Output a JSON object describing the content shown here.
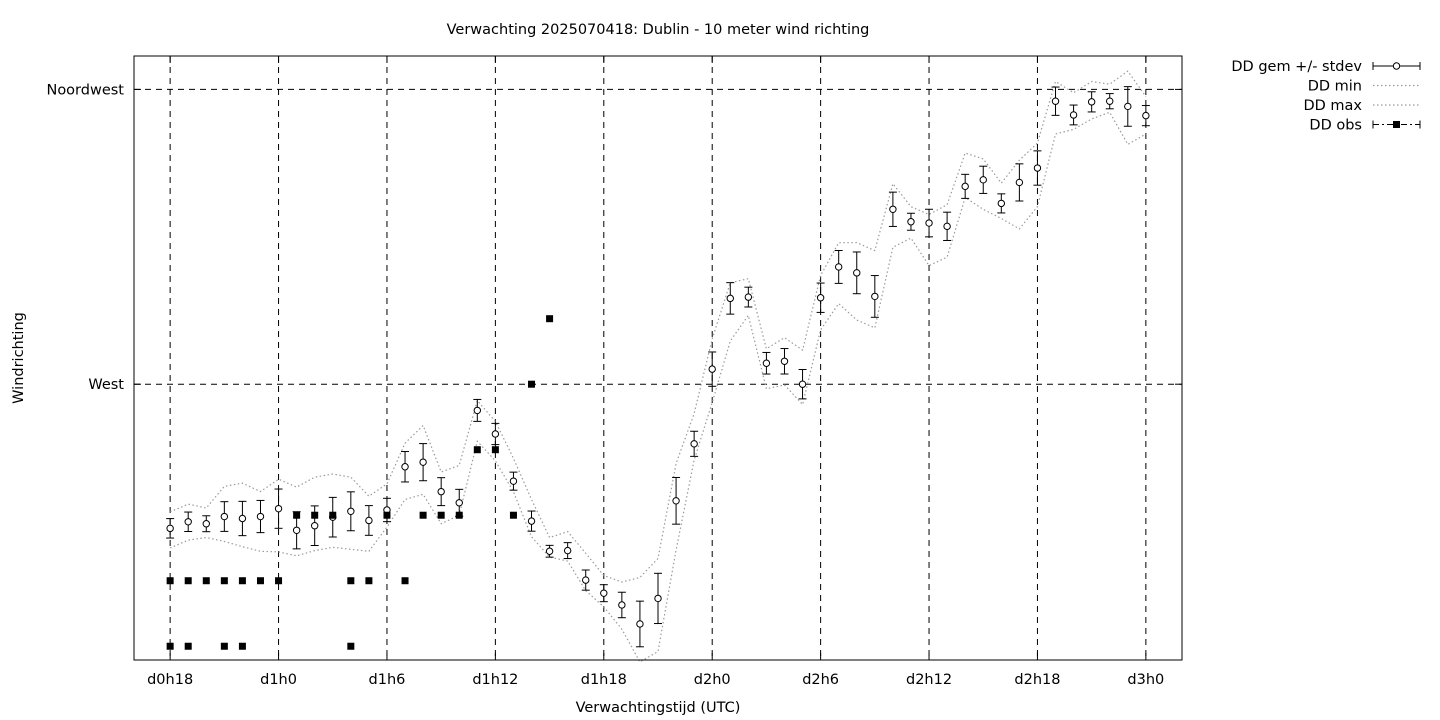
{
  "chart_data": {
    "type": "scatter",
    "title": "Verwachting 2025070418: Dublin - 10 meter wind richting",
    "xlabel": "Verwachtingstijd (UTC)",
    "ylabel": "Windrichting",
    "x_tick_labels": [
      "d0h18",
      "d1h0",
      "d1h6",
      "d1h12",
      "d1h18",
      "d2h0",
      "d2h6",
      "d2h12",
      "d2h18",
      "d3h0"
    ],
    "x_tick_hours": [
      18,
      24,
      30,
      36,
      42,
      48,
      54,
      60,
      66,
      72
    ],
    "xlim_hours": [
      16,
      74
    ],
    "ylim": [
      227.9,
      320.1
    ],
    "y_ticks": [
      {
        "value": 270,
        "label": "West"
      },
      {
        "value": 315,
        "label": "Noordwest"
      }
    ],
    "grid": true,
    "legend_position": "outside-right",
    "legend": [
      "DD gem +/- stdev",
      "DD min",
      "DD max",
      "DD obs"
    ],
    "series": [
      {
        "name": "DD gem +/- stdev",
        "style": "points-with-errorbars",
        "x": [
          18,
          19,
          20,
          21,
          22,
          23,
          24,
          25,
          26,
          27,
          28,
          29,
          30,
          31,
          32,
          33,
          34,
          35,
          36,
          37,
          38,
          39,
          40,
          41,
          42,
          43,
          44,
          45,
          46,
          47,
          48,
          49,
          50,
          51,
          52,
          53,
          54,
          55,
          56,
          57,
          58,
          59,
          60,
          61,
          62,
          63,
          64,
          65,
          66,
          67,
          68,
          69,
          70,
          71,
          72
        ],
        "y": [
          248,
          249,
          248.7,
          249.8,
          249.5,
          249.8,
          251,
          247.7,
          248.4,
          249.7,
          250.6,
          249.2,
          250.8,
          257.4,
          258.1,
          253.6,
          251.9,
          266,
          262.4,
          255.2,
          249.1,
          244.5,
          244.6,
          240.1,
          238.1,
          236.3,
          233.4,
          237.3,
          252.2,
          260.9,
          272.3,
          283.1,
          283.3,
          273.2,
          273.5,
          270,
          283.2,
          287.9,
          287,
          283.4,
          296.7,
          294.8,
          294.6,
          294.1,
          300.2,
          301.2,
          297.6,
          300.8,
          303,
          313.2,
          311.1,
          313.1,
          313.2,
          312.4,
          311
        ]
      },
      {
        "name": "DD min",
        "style": "dotted-line",
        "x": [
          18,
          19,
          20,
          21,
          22,
          23,
          24,
          25,
          26,
          27,
          28,
          29,
          30,
          31,
          32,
          33,
          34,
          35,
          36,
          37,
          38,
          39,
          40,
          41,
          42,
          43,
          44,
          45,
          46,
          47,
          48,
          49,
          50,
          51,
          52,
          53,
          54,
          55,
          56,
          57,
          58,
          59,
          60,
          61,
          62,
          63,
          64,
          65,
          66,
          67,
          68,
          69,
          70,
          71,
          72
        ],
        "y": [
          245,
          246.2,
          246.6,
          246,
          245.2,
          244.5,
          244.4,
          243.8,
          244.6,
          245.1,
          244.8,
          244.5,
          248.2,
          252.4,
          253.2,
          248.7,
          250,
          261.3,
          258.3,
          253.6,
          246.7,
          243.6,
          243,
          238.5,
          236,
          232.6,
          227.6,
          229.2,
          244.7,
          258.4,
          267.2,
          276.6,
          280.5,
          269.3,
          269.9,
          266.9,
          278.3,
          282.3,
          279.8,
          278.6,
          290.9,
          292.3,
          288.1,
          289.4,
          298.5,
          296.7,
          295.3,
          293.7,
          297.1,
          308.2,
          308.9,
          310.5,
          311.5,
          306.6,
          308.2
        ]
      },
      {
        "name": "DD max",
        "style": "dotted-line",
        "x": [
          18,
          19,
          20,
          21,
          22,
          23,
          24,
          25,
          26,
          27,
          28,
          29,
          30,
          31,
          32,
          33,
          34,
          35,
          36,
          37,
          38,
          39,
          40,
          41,
          42,
          43,
          44,
          45,
          46,
          47,
          48,
          49,
          50,
          51,
          52,
          53,
          54,
          55,
          56,
          57,
          58,
          59,
          60,
          61,
          62,
          63,
          64,
          65,
          66,
          67,
          68,
          69,
          70,
          71,
          72
        ],
        "y": [
          250.5,
          251.7,
          251.1,
          254.4,
          254.9,
          253.6,
          255.5,
          254.3,
          255.8,
          256.3,
          255.8,
          252.9,
          254.8,
          261,
          263.7,
          256.6,
          257.6,
          267.5,
          264.3,
          258.7,
          252.4,
          246.6,
          247.5,
          244.2,
          240.8,
          239.8,
          240.5,
          243.4,
          257.9,
          265.5,
          276.9,
          285.5,
          286.1,
          275.4,
          277.1,
          275.2,
          286.6,
          291.6,
          291.6,
          290.4,
          300.6,
          297.1,
          295.9,
          297.4,
          305.3,
          304.4,
          300.7,
          304.2,
          306.8,
          316.2,
          314.5,
          316.2,
          315.8,
          317.8,
          313.9
        ]
      },
      {
        "name": "DD obs",
        "style": "filled-squares",
        "x": [
          18,
          19,
          20,
          21,
          22,
          23,
          24,
          25,
          26,
          27,
          28,
          29,
          30,
          31,
          32,
          33,
          34,
          35,
          36,
          37,
          38,
          39,
          18,
          19,
          21,
          22,
          28
        ],
        "y": [
          240,
          240,
          240,
          240,
          240,
          240,
          240,
          250,
          250,
          250,
          240,
          240,
          250,
          240,
          250,
          250,
          250,
          260,
          260,
          250,
          270,
          280,
          230,
          230,
          230,
          230,
          230
        ]
      }
    ]
  }
}
